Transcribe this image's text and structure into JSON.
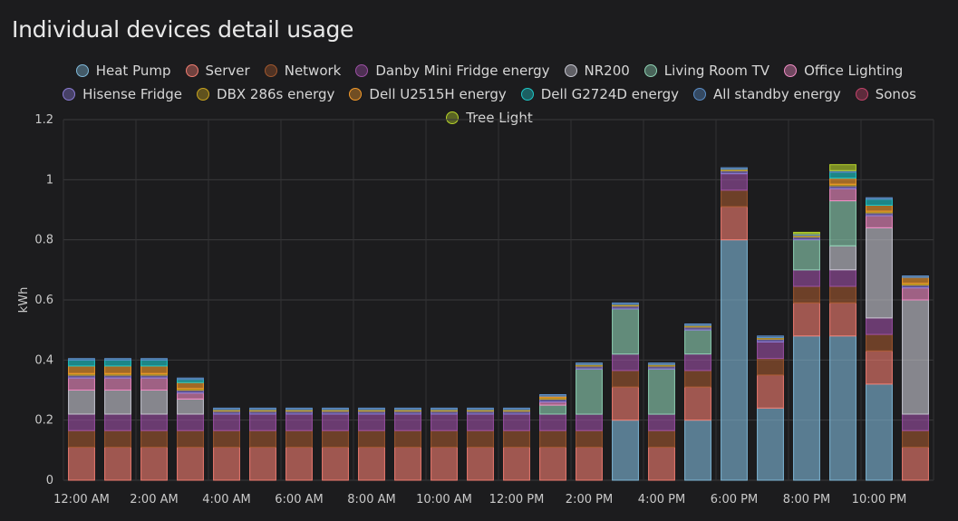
{
  "card": {
    "title": "Individual devices detail usage"
  },
  "chart_data": {
    "type": "bar",
    "stacked": true,
    "ylabel": "kWh",
    "ylim": [
      0,
      1.2
    ],
    "yticks": [
      "0",
      "0.2",
      "0.4",
      "0.6",
      "0.8",
      "1",
      "1.2"
    ],
    "ytick_values": [
      0,
      0.2,
      0.4,
      0.6,
      0.8,
      1,
      1.2
    ],
    "xticks": [
      "12:00 AM",
      "2:00 AM",
      "4:00 AM",
      "6:00 AM",
      "8:00 AM",
      "10:00 AM",
      "12:00 PM",
      "2:00 PM",
      "4:00 PM",
      "6:00 PM",
      "8:00 PM",
      "10:00 PM"
    ],
    "categories": [
      "12 AM",
      "1 AM",
      "2 AM",
      "3 AM",
      "4 AM",
      "5 AM",
      "6 AM",
      "7 AM",
      "8 AM",
      "9 AM",
      "10 AM",
      "11 AM",
      "12 PM",
      "1 PM",
      "2 PM",
      "3 PM",
      "4 PM",
      "5 PM",
      "6 PM",
      "7 PM",
      "8 PM",
      "9 PM",
      "10 PM",
      "11 PM"
    ],
    "legend_position": "top",
    "grid": true,
    "series": [
      {
        "name": "Heat Pump",
        "color": "#7fb8d8",
        "values": [
          0,
          0,
          0,
          0,
          0,
          0,
          0,
          0,
          0,
          0,
          0,
          0,
          0,
          0,
          0,
          0.2,
          0,
          0.2,
          0.8,
          0.24,
          0.48,
          0.48,
          0.32,
          0
        ]
      },
      {
        "name": "Server",
        "color": "#f07c70",
        "values": [
          0.11,
          0.11,
          0.11,
          0.11,
          0.11,
          0.11,
          0.11,
          0.11,
          0.11,
          0.11,
          0.11,
          0.11,
          0.11,
          0.11,
          0.11,
          0.11,
          0.11,
          0.11,
          0.11,
          0.11,
          0.11,
          0.11,
          0.11,
          0.11
        ]
      },
      {
        "name": "Network",
        "color": "#a0572e",
        "values": [
          0.055,
          0.055,
          0.055,
          0.055,
          0.055,
          0.055,
          0.055,
          0.055,
          0.055,
          0.055,
          0.055,
          0.055,
          0.055,
          0.055,
          0.055,
          0.055,
          0.055,
          0.055,
          0.055,
          0.055,
          0.055,
          0.055,
          0.055,
          0.055
        ]
      },
      {
        "name": "Danby Mini Fridge energy",
        "color": "#9b4fa3",
        "values": [
          0.055,
          0.055,
          0.055,
          0.055,
          0.055,
          0.055,
          0.055,
          0.055,
          0.055,
          0.055,
          0.055,
          0.055,
          0.055,
          0.055,
          0.055,
          0.055,
          0.055,
          0.055,
          0.055,
          0.055,
          0.055,
          0.055,
          0.055,
          0.055
        ]
      },
      {
        "name": "NR200",
        "color": "#c8c8d2",
        "values": [
          0.08,
          0.08,
          0.08,
          0.05,
          0,
          0,
          0,
          0,
          0,
          0,
          0,
          0,
          0,
          0,
          0,
          0,
          0,
          0,
          0,
          0,
          0,
          0.08,
          0.3,
          0.38
        ]
      },
      {
        "name": "Living Room TV",
        "color": "#8ed1b3",
        "values": [
          0,
          0,
          0,
          0,
          0,
          0,
          0,
          0,
          0,
          0,
          0,
          0,
          0,
          0.03,
          0.15,
          0.15,
          0.15,
          0.08,
          0,
          0,
          0.1,
          0.15,
          0,
          0
        ]
      },
      {
        "name": "Office Lighting",
        "color": "#f08cc4",
        "values": [
          0.04,
          0.04,
          0.04,
          0.02,
          0,
          0,
          0,
          0,
          0,
          0,
          0,
          0,
          0,
          0.01,
          0,
          0,
          0,
          0,
          0,
          0,
          0,
          0.04,
          0.04,
          0.04
        ]
      },
      {
        "name": "Hisense Fridge",
        "color": "#8a7bd4",
        "values": [
          0.01,
          0.01,
          0.01,
          0.01,
          0.01,
          0.01,
          0.01,
          0.01,
          0.01,
          0.01,
          0.01,
          0.01,
          0.01,
          0.01,
          0.01,
          0.01,
          0.01,
          0.01,
          0.01,
          0.01,
          0.01,
          0.01,
          0.01,
          0.01
        ]
      },
      {
        "name": "DBX 286s energy",
        "color": "#c9a41f",
        "values": [
          0.005,
          0.005,
          0.005,
          0.005,
          0.005,
          0.005,
          0.005,
          0.005,
          0.005,
          0.005,
          0.005,
          0.005,
          0.005,
          0.005,
          0.005,
          0.005,
          0.005,
          0.005,
          0.005,
          0.005,
          0.005,
          0.005,
          0.005,
          0.005
        ]
      },
      {
        "name": "Dell U2515H energy",
        "color": "#f39a2b",
        "values": [
          0.025,
          0.025,
          0.025,
          0.02,
          0,
          0,
          0,
          0,
          0,
          0,
          0,
          0,
          0,
          0.005,
          0,
          0,
          0,
          0,
          0,
          0,
          0,
          0.02,
          0.02,
          0.02
        ]
      },
      {
        "name": "Dell G2724D energy",
        "color": "#1ec8c8",
        "values": [
          0.02,
          0.02,
          0.02,
          0.01,
          0,
          0,
          0,
          0,
          0,
          0,
          0,
          0,
          0,
          0,
          0,
          0,
          0,
          0,
          0,
          0,
          0,
          0.02,
          0.02,
          0
        ]
      },
      {
        "name": "All standby energy",
        "color": "#5b8ec8",
        "values": [
          0.005,
          0.005,
          0.005,
          0.005,
          0.005,
          0.005,
          0.005,
          0.005,
          0.005,
          0.005,
          0.005,
          0.005,
          0.005,
          0.005,
          0.005,
          0.005,
          0.005,
          0.005,
          0.005,
          0.005,
          0.005,
          0.005,
          0.005,
          0.005
        ]
      },
      {
        "name": "Sonos",
        "color": "#c2436a",
        "values": [
          0,
          0,
          0,
          0,
          0,
          0,
          0,
          0,
          0,
          0,
          0,
          0,
          0,
          0,
          0,
          0,
          0,
          0,
          0,
          0,
          0,
          0,
          0,
          0
        ]
      },
      {
        "name": "Tree Light",
        "color": "#b7d32a",
        "values": [
          0,
          0,
          0,
          0,
          0,
          0,
          0,
          0,
          0,
          0,
          0,
          0,
          0,
          0,
          0,
          0,
          0,
          0,
          0,
          0,
          0.005,
          0.02,
          0,
          0
        ]
      }
    ]
  }
}
